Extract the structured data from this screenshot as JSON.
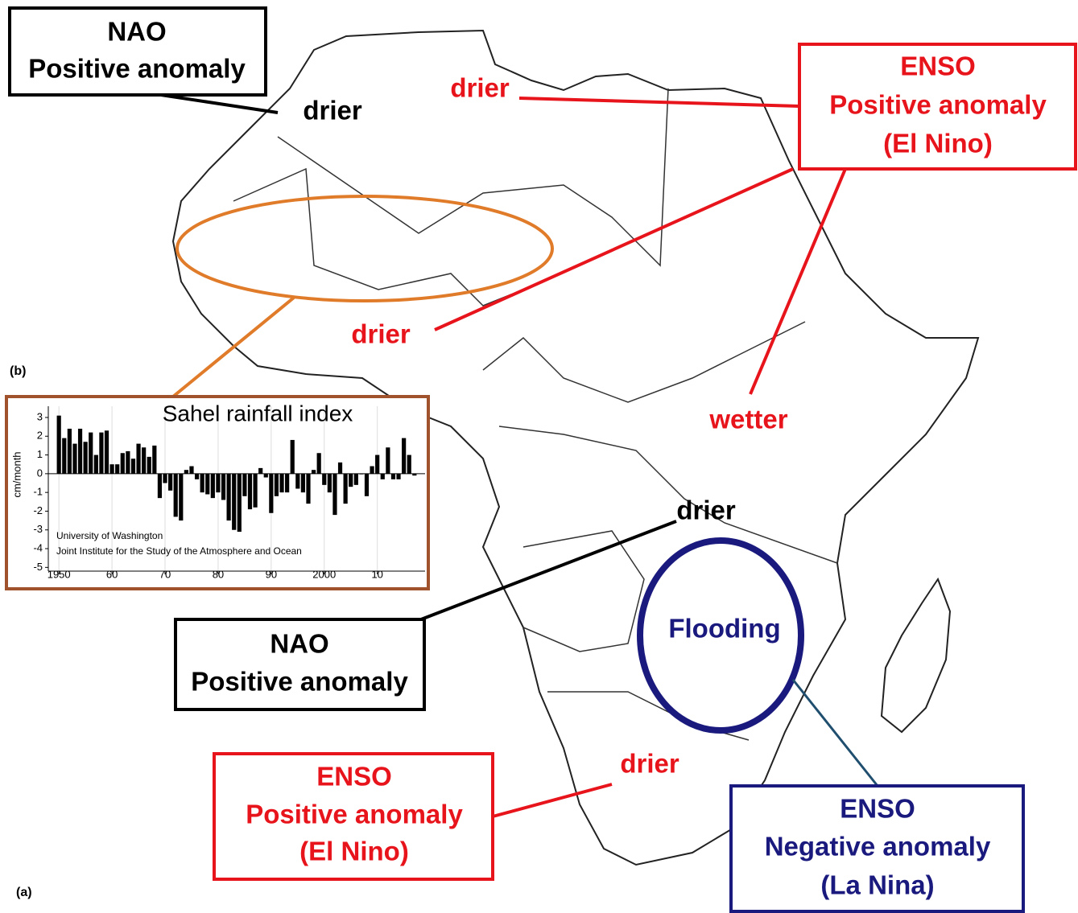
{
  "panel_labels": [
    "(a)",
    "(b)"
  ],
  "boxes": [
    {
      "lines": [
        "NAO",
        "Positive anomaly"
      ]
    },
    {
      "lines": [
        "ENSO",
        "Positive anomaly",
        "(El Nino)"
      ]
    },
    {
      "lines": [
        "NAO",
        "Positive anomaly"
      ]
    },
    {
      "lines": [
        "ENSO",
        "Positive anomaly",
        "(El Nino)"
      ]
    },
    {
      "lines": [
        "ENSO",
        "Negative anomaly",
        "(La Nina)"
      ]
    }
  ],
  "region_labels": [
    "drier",
    "drier",
    "drier",
    "wetter",
    "drier",
    "drier",
    "Flooding"
  ],
  "chart_data": {
    "type": "bar",
    "title": "Sahel rainfall index",
    "y_label": "cm/month",
    "notes": [
      "University of Washington",
      "Joint Institute for the Study of the Atmosphere and Ocean"
    ],
    "x": [
      1950,
      1951,
      1952,
      1953,
      1954,
      1955,
      1956,
      1957,
      1958,
      1959,
      1960,
      1961,
      1962,
      1963,
      1964,
      1965,
      1966,
      1967,
      1968,
      1969,
      1970,
      1971,
      1972,
      1973,
      1974,
      1975,
      1976,
      1977,
      1978,
      1979,
      1980,
      1981,
      1982,
      1983,
      1984,
      1985,
      1986,
      1987,
      1988,
      1989,
      1990,
      1991,
      1992,
      1993,
      1994,
      1995,
      1996,
      1997,
      1998,
      1999,
      2000,
      2001,
      2002,
      2003,
      2004,
      2005,
      2006,
      2007,
      2008,
      2009,
      2010,
      2011,
      2012,
      2013,
      2014,
      2015,
      2016,
      2017
    ],
    "values": [
      3.1,
      1.9,
      2.4,
      1.6,
      2.4,
      1.7,
      2.2,
      1.0,
      2.2,
      2.3,
      0.5,
      0.5,
      1.1,
      1.2,
      0.8,
      1.6,
      1.4,
      0.9,
      1.5,
      -1.3,
      -0.5,
      -0.9,
      -2.3,
      -2.5,
      0.2,
      0.4,
      -0.3,
      -1.0,
      -1.1,
      -1.3,
      -1.0,
      -1.4,
      -2.5,
      -3.0,
      -3.1,
      -1.2,
      -1.9,
      -1.8,
      0.3,
      -0.2,
      -2.1,
      -1.2,
      -1.0,
      -1.0,
      1.8,
      -0.8,
      -1.0,
      -1.6,
      0.2,
      1.1,
      -0.6,
      -1.0,
      -2.2,
      0.6,
      -1.6,
      -0.7,
      -0.6,
      0.0,
      -1.2,
      0.4,
      1.0,
      -0.3,
      1.4,
      -0.3,
      -0.3,
      1.9,
      1.0,
      -0.1
    ],
    "color": "#000000",
    "xlim": [
      1948,
      2019
    ],
    "ylim": [
      -5.2,
      3.6
    ],
    "xticks": [
      {
        "value": 1950,
        "label": "1950"
      },
      {
        "value": 1960,
        "label": "60"
      },
      {
        "value": 1970,
        "label": "70"
      },
      {
        "value": 1980,
        "label": "80"
      },
      {
        "value": 1990,
        "label": "90"
      },
      {
        "value": 2000,
        "label": "2000"
      },
      {
        "value": 2010,
        "label": "10"
      }
    ],
    "yticks": [
      -5,
      -4,
      -3,
      -2,
      -1,
      0,
      1,
      2,
      3
    ],
    "grid": true
  }
}
